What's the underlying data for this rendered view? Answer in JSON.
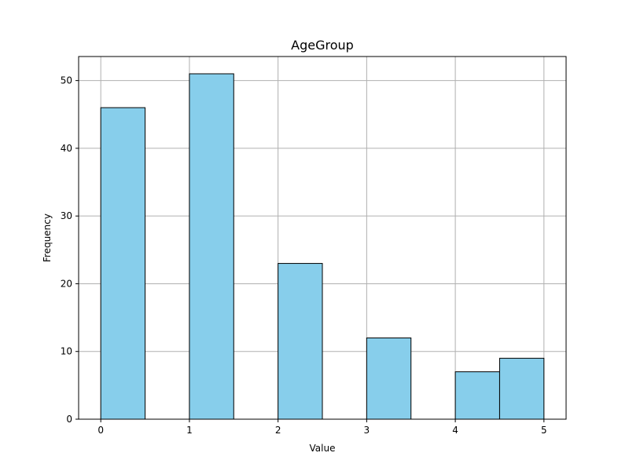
{
  "chart_data": {
    "type": "bar",
    "title": "AgeGroup",
    "xlabel": "Value",
    "ylabel": "Frequency",
    "bins": [
      {
        "start": 0.0,
        "end": 0.5,
        "count": 46
      },
      {
        "start": 0.5,
        "end": 1.0,
        "count": 0
      },
      {
        "start": 1.0,
        "end": 1.5,
        "count": 51
      },
      {
        "start": 1.5,
        "end": 2.0,
        "count": 0
      },
      {
        "start": 2.0,
        "end": 2.5,
        "count": 23
      },
      {
        "start": 2.5,
        "end": 3.0,
        "count": 0
      },
      {
        "start": 3.0,
        "end": 3.5,
        "count": 12
      },
      {
        "start": 3.5,
        "end": 4.0,
        "count": 0
      },
      {
        "start": 4.0,
        "end": 4.5,
        "count": 7
      },
      {
        "start": 4.5,
        "end": 5.0,
        "count": 9
      }
    ],
    "xlim": [
      -0.25,
      5.25
    ],
    "ylim": [
      0,
      53.55
    ],
    "xticks": [
      0,
      1,
      2,
      3,
      4,
      5
    ],
    "yticks": [
      0,
      10,
      20,
      30,
      40,
      50
    ],
    "grid": true,
    "bar_color": "#87ceeb",
    "edge_color": "#000000"
  }
}
